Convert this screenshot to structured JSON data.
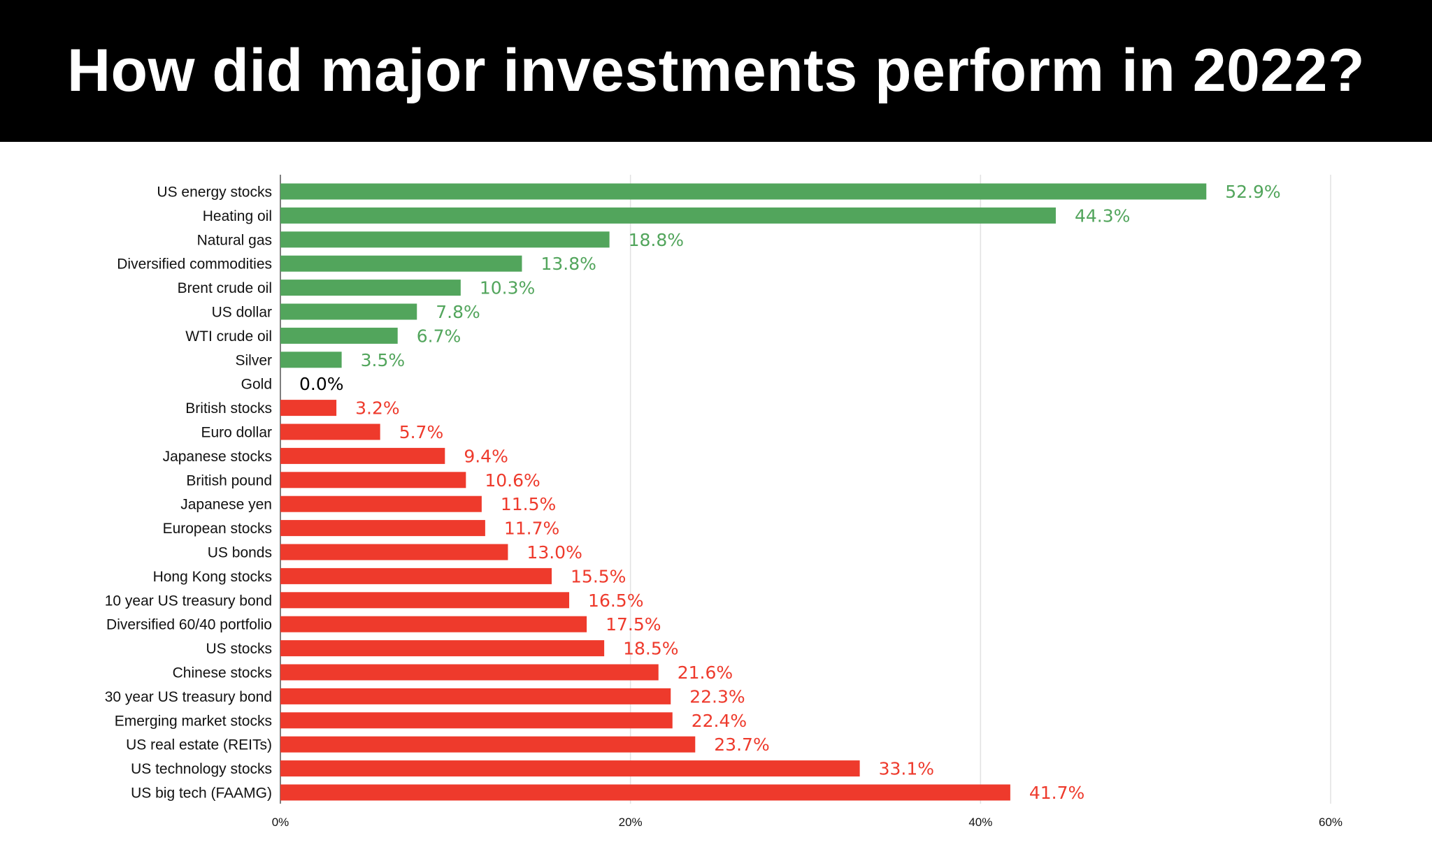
{
  "chart_data": {
    "type": "bar",
    "orientation": "horizontal",
    "title": "How did major investments perform in 2022?",
    "categories": [
      "US energy stocks",
      "Heating oil",
      "Natural gas",
      "Diversified commodities",
      "Brent crude oil",
      "US dollar",
      "WTI crude oil",
      "Silver",
      "Gold",
      "British stocks",
      "Euro dollar",
      "Japanese stocks",
      "British pound",
      "Japanese yen",
      "European stocks",
      "US bonds",
      "Hong Kong stocks",
      "10 year US treasury bond",
      "Diversified 60/40 portfolio",
      "US stocks",
      "Chinese stocks",
      "30 year US treasury bond",
      "Emerging market stocks",
      "US real estate (REITs)",
      "US technology stocks",
      "US big tech (FAAMG)"
    ],
    "values": [
      52.9,
      44.3,
      18.8,
      13.8,
      10.3,
      7.8,
      6.7,
      3.5,
      0.0,
      3.2,
      5.7,
      9.4,
      10.6,
      11.5,
      11.7,
      13.0,
      15.5,
      16.5,
      17.5,
      18.5,
      21.6,
      22.3,
      22.4,
      23.7,
      33.1,
      41.7
    ],
    "value_labels": [
      "52.9%",
      "44.3%",
      "18.8%",
      "13.8%",
      "10.3%",
      "7.8%",
      "6.7%",
      "3.5%",
      "0.0%",
      "3.2%",
      "5.7%",
      "9.4%",
      "10.6%",
      "11.5%",
      "11.7%",
      "13.0%",
      "15.5%",
      "16.5%",
      "17.5%",
      "18.5%",
      "21.6%",
      "22.3%",
      "22.4%",
      "23.7%",
      "33.1%",
      "41.7%"
    ],
    "direction": [
      "up",
      "up",
      "up",
      "up",
      "up",
      "up",
      "up",
      "up",
      "flat",
      "down",
      "down",
      "down",
      "down",
      "down",
      "down",
      "down",
      "down",
      "down",
      "down",
      "down",
      "down",
      "down",
      "down",
      "down",
      "down",
      "down"
    ],
    "x_ticks": [
      "0%",
      "20%",
      "40%",
      "60%"
    ],
    "xlim": [
      0,
      60
    ],
    "grid": true,
    "colors": {
      "up": "#52a55c",
      "down": "#ee3a2c",
      "flat": "#000000",
      "header_bg": "#000000",
      "header_text": "#ffffff"
    }
  }
}
